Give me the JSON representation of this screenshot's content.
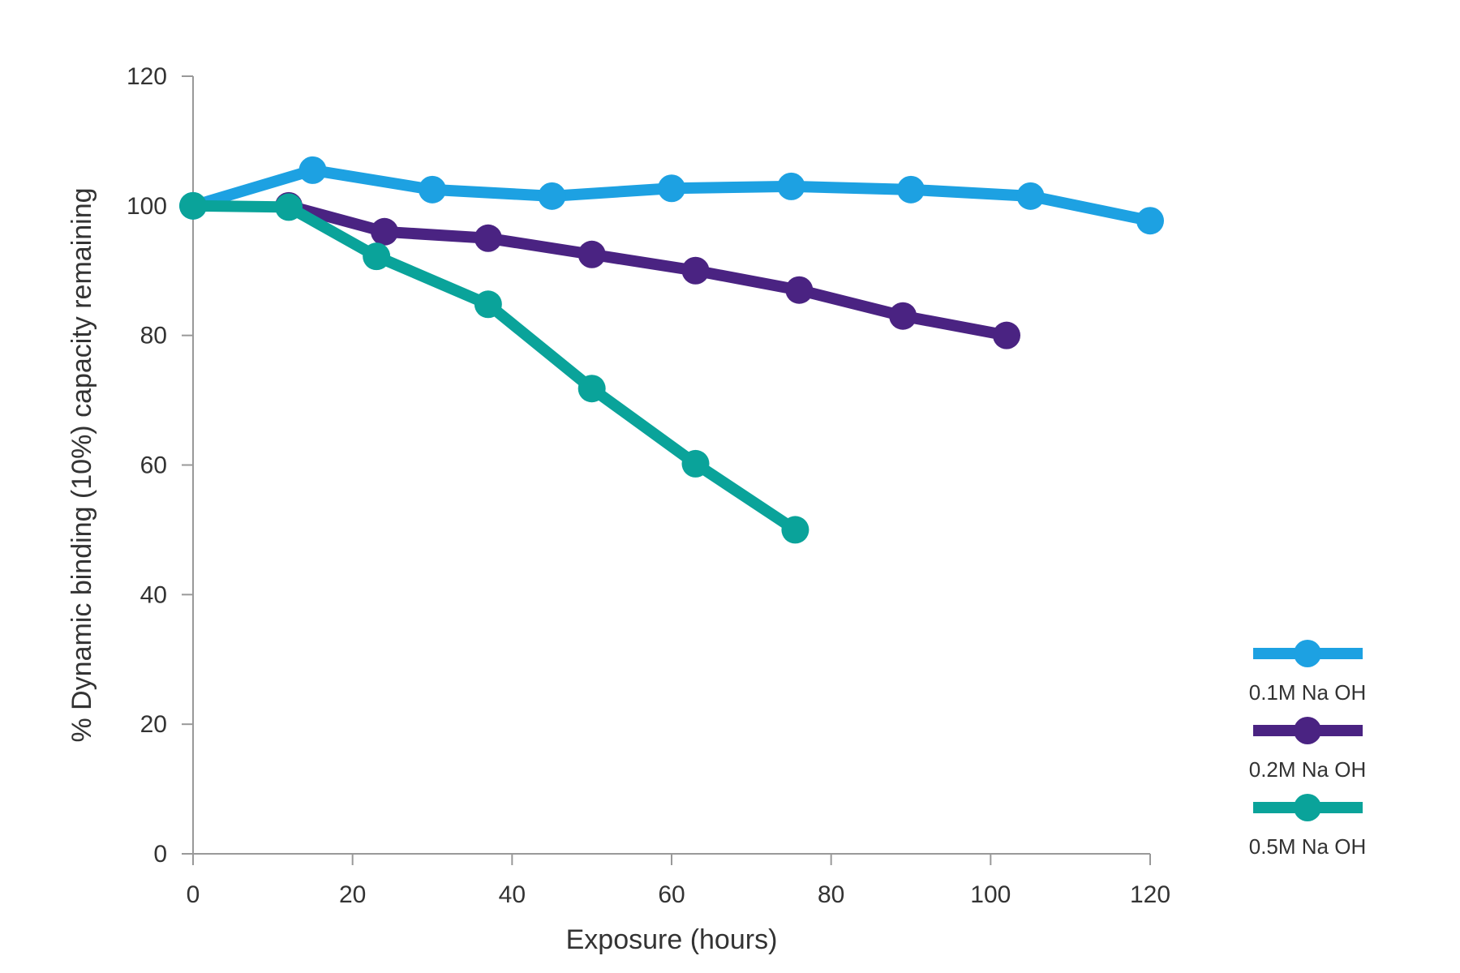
{
  "chart_data": {
    "type": "line",
    "title": "",
    "xlabel": "Exposure (hours)",
    "ylabel": "% Dynamic binding (10%) capacity remaining",
    "xlim": [
      0,
      120
    ],
    "ylim": [
      0,
      120
    ],
    "xticks": [
      0,
      20,
      40,
      60,
      80,
      100,
      120
    ],
    "yticks": [
      0,
      20,
      40,
      60,
      80,
      100,
      120
    ],
    "grid": false,
    "legend_position": "bottom-right",
    "series": [
      {
        "name": "0.1M Na OH",
        "color": "#1da1e2",
        "x": [
          0,
          15,
          30,
          45,
          60,
          75,
          90,
          105,
          120
        ],
        "y": [
          100,
          105.5,
          102.5,
          101.5,
          102.7,
          103,
          102.5,
          101.5,
          97.7
        ]
      },
      {
        "name": "0.2M Na OH",
        "color": "#4a2382",
        "x": [
          12,
          24,
          37,
          50,
          63,
          76,
          89,
          102
        ],
        "y": [
          100,
          96,
          95,
          92.5,
          90,
          87,
          83,
          80
        ]
      },
      {
        "name": "0.5M Na OH",
        "color": "#0aa39a",
        "x": [
          0,
          12,
          23,
          37,
          50,
          63,
          75.5
        ],
        "y": [
          100,
          99.8,
          92.2,
          84.8,
          71.8,
          60.2,
          50
        ]
      }
    ]
  }
}
